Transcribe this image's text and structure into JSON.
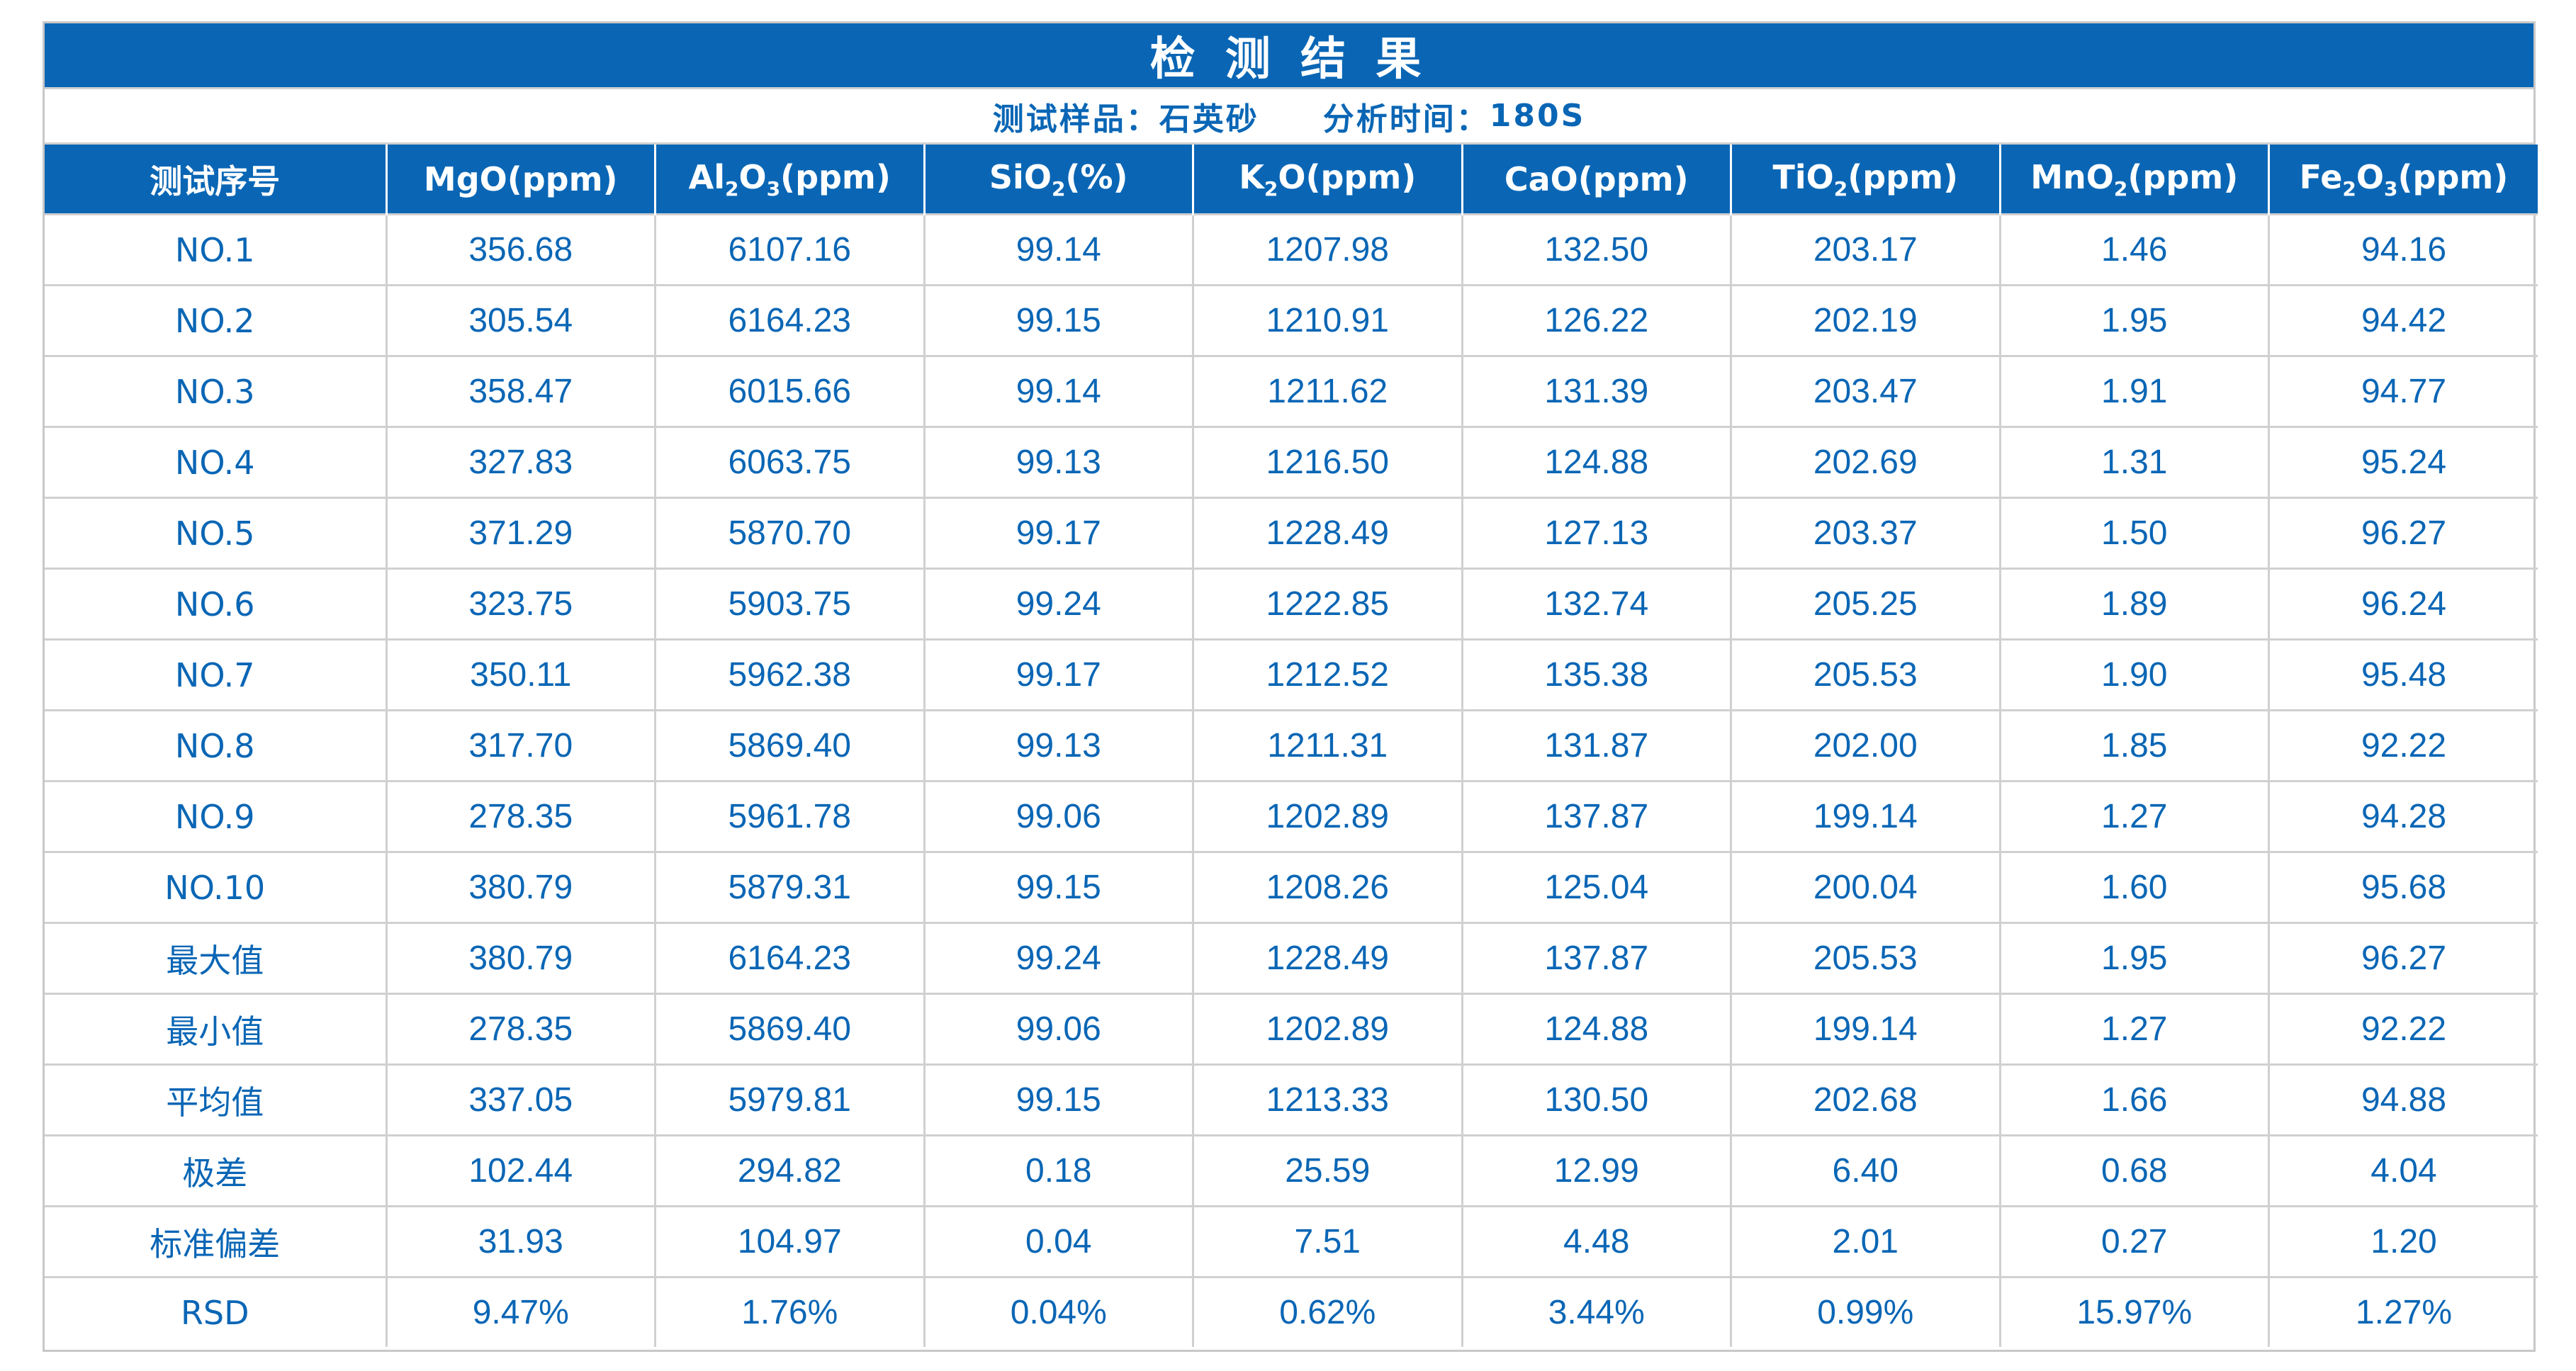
{
  "title": "检 测 结 果",
  "meta": {
    "sample_label": "测试样品：",
    "sample_value": "石英砂",
    "time_label": "分析时间：",
    "time_value": "180S"
  },
  "columns": [
    {
      "pre": "测试序号",
      "sub": "",
      "post": ""
    },
    {
      "pre": "MgO(ppm)",
      "sub": "",
      "post": ""
    },
    {
      "pre": "Al",
      "sub": "2",
      "post": "O",
      "sub2": "3",
      "post2": "(ppm)"
    },
    {
      "pre": "SiO",
      "sub": "2",
      "post": "(%)"
    },
    {
      "pre": "K",
      "sub": "2",
      "post": "O(ppm)"
    },
    {
      "pre": "CaO(ppm)",
      "sub": "",
      "post": ""
    },
    {
      "pre": "TiO",
      "sub": "2",
      "post": "(ppm)"
    },
    {
      "pre": "MnO",
      "sub": "2",
      "post": "(ppm)"
    },
    {
      "pre": "Fe",
      "sub": "2",
      "post": "O",
      "sub2": "3",
      "post2": "(ppm)"
    }
  ],
  "rows": [
    [
      "NO.1",
      "356.68",
      "6107.16",
      "99.14",
      "1207.98",
      "132.50",
      "203.17",
      "1.46",
      "94.16"
    ],
    [
      "NO.2",
      "305.54",
      "6164.23",
      "99.15",
      "1210.91",
      "126.22",
      "202.19",
      "1.95",
      "94.42"
    ],
    [
      "NO.3",
      "358.47",
      "6015.66",
      "99.14",
      "1211.62",
      "131.39",
      "203.47",
      "1.91",
      "94.77"
    ],
    [
      "NO.4",
      "327.83",
      "6063.75",
      "99.13",
      "1216.50",
      "124.88",
      "202.69",
      "1.31",
      "95.24"
    ],
    [
      "NO.5",
      "371.29",
      "5870.70",
      "99.17",
      "1228.49",
      "127.13",
      "203.37",
      "1.50",
      "96.27"
    ],
    [
      "NO.6",
      "323.75",
      "5903.75",
      "99.24",
      "1222.85",
      "132.74",
      "205.25",
      "1.89",
      "96.24"
    ],
    [
      "NO.7",
      "350.11",
      "5962.38",
      "99.17",
      "1212.52",
      "135.38",
      "205.53",
      "1.90",
      "95.48"
    ],
    [
      "NO.8",
      "317.70",
      "5869.40",
      "99.13",
      "1211.31",
      "131.87",
      "202.00",
      "1.85",
      "92.22"
    ],
    [
      "NO.9",
      "278.35",
      "5961.78",
      "99.06",
      "1202.89",
      "137.87",
      "199.14",
      "1.27",
      "94.28"
    ],
    [
      "NO.10",
      "380.79",
      "5879.31",
      "99.15",
      "1208.26",
      "125.04",
      "200.04",
      "1.60",
      "95.68"
    ],
    [
      "最大值",
      "380.79",
      "6164.23",
      "99.24",
      "1228.49",
      "137.87",
      "205.53",
      "1.95",
      "96.27"
    ],
    [
      "最小值",
      "278.35",
      "5869.40",
      "99.06",
      "1202.89",
      "124.88",
      "199.14",
      "1.27",
      "92.22"
    ],
    [
      "平均值",
      "337.05",
      "5979.81",
      "99.15",
      "1213.33",
      "130.50",
      "202.68",
      "1.66",
      "94.88"
    ],
    [
      "极差",
      "102.44",
      "294.82",
      "0.18",
      "25.59",
      "12.99",
      "6.40",
      "0.68",
      "4.04"
    ],
    [
      "标准偏差",
      "31.93",
      "104.97",
      "0.04",
      "7.51",
      "4.48",
      "2.01",
      "0.27",
      "1.20"
    ],
    [
      "RSD",
      "9.47%",
      "1.76%",
      "0.04%",
      "0.62%",
      "3.44%",
      "0.99%",
      "15.97%",
      "1.27%"
    ]
  ],
  "colors": {
    "header_bg": "#0a66b5",
    "text": "#0a66b5",
    "grid": "#d0d0d0"
  }
}
